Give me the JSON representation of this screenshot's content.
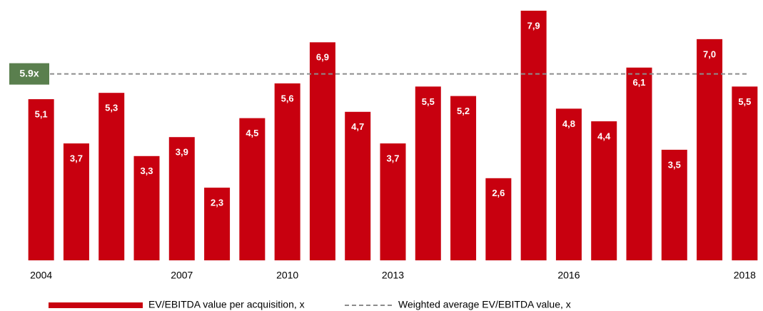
{
  "chart_data": {
    "type": "bar",
    "categories": [
      "2004",
      null,
      null,
      null,
      "2007",
      null,
      null,
      "2010",
      null,
      null,
      "2013",
      null,
      null,
      null,
      null,
      "2016",
      null,
      null,
      null,
      null,
      "2018"
    ],
    "series": [
      {
        "name": "EV/EBITDA value per acquisition, x",
        "color": "#c8000f",
        "values": [
          5.1,
          3.7,
          5.3,
          3.3,
          3.9,
          2.3,
          4.5,
          5.6,
          6.9,
          4.7,
          3.7,
          5.5,
          5.2,
          2.6,
          7.9,
          4.8,
          4.4,
          6.1,
          3.5,
          7.0,
          5.5
        ],
        "value_labels": [
          "5,1",
          "3,7",
          "5,3",
          "3,3",
          "3,9",
          "2,3",
          "4,5",
          "5,6",
          "6,9",
          "4,7",
          "3,7",
          "5,5",
          "5,2",
          "2,6",
          "7,9",
          "4,8",
          "4,4",
          "6,1",
          "3,5",
          "7,0",
          "5,5"
        ]
      }
    ],
    "reference_line": {
      "name": "Weighted average EV/EBITDA value, x",
      "value": 5.9,
      "label": "5.9x",
      "color": "#8c8c8c",
      "label_color": "#5a7f4e"
    },
    "ylim": [
      0,
      7.9
    ],
    "grid": false
  }
}
